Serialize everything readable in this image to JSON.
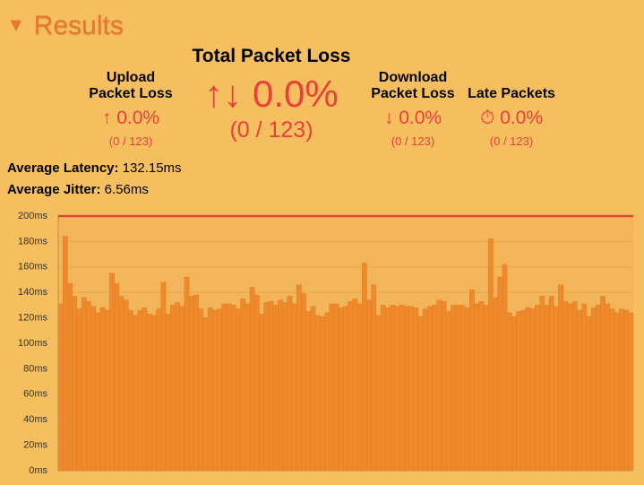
{
  "header": {
    "title": "Results"
  },
  "total": {
    "label": "Total Packet Loss",
    "percent": "0.0%",
    "count": "(0 / 123)"
  },
  "upload": {
    "label": "Upload Packet Loss",
    "percent": "0.0%",
    "count": "(0 / 123)"
  },
  "download": {
    "label": "Download Packet Loss",
    "percent": "0.0%",
    "count": "(0 / 123)"
  },
  "late": {
    "label": "Late Packets",
    "percent": "0.0%",
    "count": "(0 / 123)"
  },
  "latency": {
    "label": "Average Latency:",
    "value": "132.15ms"
  },
  "jitter": {
    "label": "Average Jitter:",
    "value": "6.56ms"
  },
  "chart_data": {
    "type": "bar",
    "color": "#ee8a2c",
    "values": [
      131,
      184,
      147,
      137,
      127,
      136,
      133,
      129,
      124,
      128,
      126,
      155,
      147,
      137,
      134,
      126,
      122,
      126,
      128,
      123,
      122,
      127,
      148,
      123,
      130,
      132,
      129,
      152,
      137,
      138,
      127,
      120,
      128,
      126,
      127,
      131,
      131,
      130,
      127,
      135,
      131,
      144,
      138,
      123,
      132,
      133,
      130,
      134,
      132,
      137,
      131,
      146,
      139,
      125,
      129,
      122,
      121,
      124,
      131,
      131,
      128,
      129,
      133,
      135,
      131,
      163,
      134,
      146,
      122,
      130,
      128,
      130,
      129,
      130,
      129,
      129,
      128,
      121,
      127,
      129,
      130,
      134,
      133,
      125,
      130,
      130,
      130,
      128,
      142,
      131,
      133,
      130,
      182,
      136,
      152,
      162,
      124,
      121,
      125,
      126,
      128,
      127,
      130,
      137,
      130,
      137,
      129,
      146,
      133,
      131,
      133,
      126,
      131,
      121,
      128,
      130,
      137,
      131,
      127,
      124,
      127,
      126,
      124
    ],
    "ylim": [
      0,
      200
    ],
    "yticks": [
      {
        "value": 0,
        "label": "0ms"
      },
      {
        "value": 20,
        "label": "20ms"
      },
      {
        "value": 40,
        "label": "40ms"
      },
      {
        "value": 60,
        "label": "60ms"
      },
      {
        "value": 80,
        "label": "80ms"
      },
      {
        "value": 100,
        "label": "100ms"
      },
      {
        "value": 120,
        "label": "120ms"
      },
      {
        "value": 140,
        "label": "140ms"
      },
      {
        "value": 160,
        "label": "160ms"
      },
      {
        "value": 180,
        "label": "180ms"
      },
      {
        "value": 200,
        "label": "200ms"
      }
    ],
    "grid": true,
    "reference_line": {
      "value": 200,
      "color": "#e8413c"
    }
  }
}
